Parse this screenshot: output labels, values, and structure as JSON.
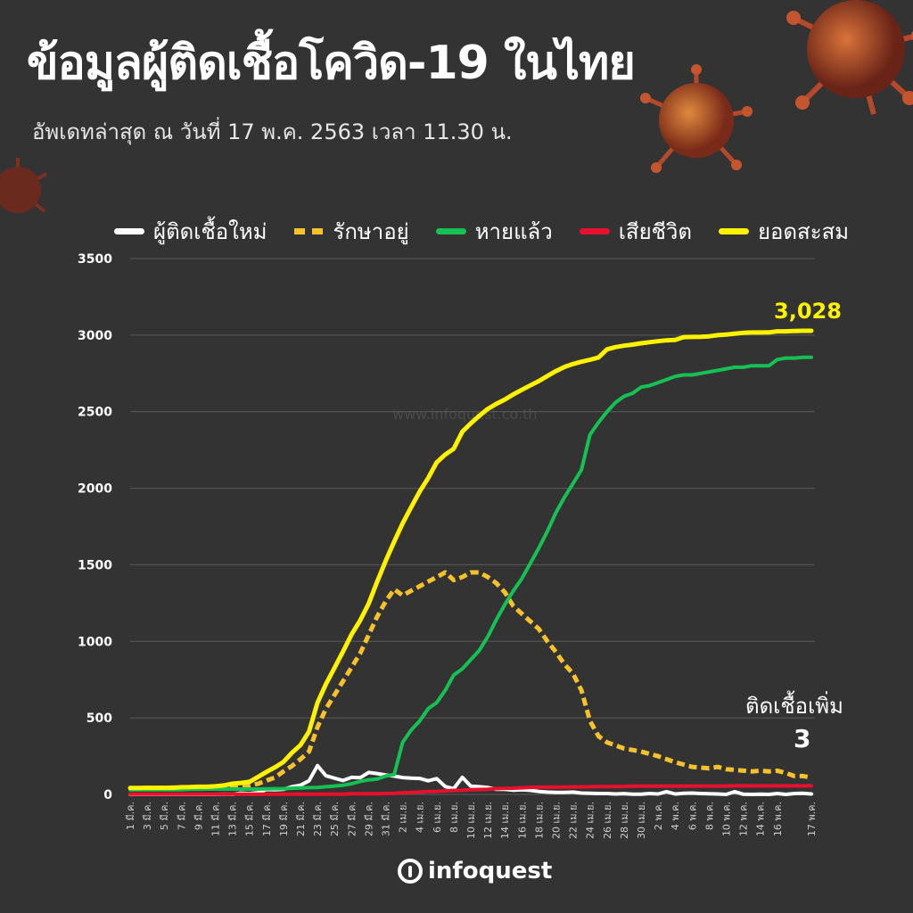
{
  "title": "ข้อมูลผู้ติดเชื้อโควิด-19 ในไทย",
  "subtitle": "อัพเดทล่าสุด ณ วันที่  17 พ.ค. 2563 เวลา 11.30 น.",
  "watermark": "www.infoquest.co.th",
  "logo_text": "infoquest",
  "colors": {
    "background": "#333333",
    "new_cases": "#ffffff",
    "hospitalized": "#f5c22b",
    "recovered": "#16c153",
    "deaths": "#e8112d",
    "cumulative": "#fff200"
  },
  "annotations": {
    "total_label": "3,028",
    "new_label": "ติดเชื้อเพิ่ม",
    "new_value": "3"
  },
  "chart_data": {
    "type": "line",
    "title": "ข้อมูลผู้ติดเชื้อโควิด-19 ในไทย",
    "ylim": [
      0,
      3500
    ],
    "yticks": [
      0,
      500,
      1000,
      1500,
      2000,
      2500,
      3000,
      3500
    ],
    "grid": true,
    "legend_position": "top",
    "x_tick_labels": [
      "1 มี.ค.",
      "3 มี.ค.",
      "5 มี.ค.",
      "7 มี.ค.",
      "9 มี.ค.",
      "11 มี.ค.",
      "13 มี.ค.",
      "15 มี.ค.",
      "17 มี.ค.",
      "19 มี.ค.",
      "21 มี.ค.",
      "23 มี.ค.",
      "25 มี.ค.",
      "27 มี.ค.",
      "29 มี.ค.",
      "31 มี.ค.",
      "2 เม.ย.",
      "4 เม.ย.",
      "6 เม.ย.",
      "8 เม.ย.",
      "10 เม.ย.",
      "12 เม.ย.",
      "14 เม.ย.",
      "16 เม.ย.",
      "18 เม.ย.",
      "20 เม.ย.",
      "22 เม.ย.",
      "24 เม.ย.",
      "26 เม.ย.",
      "28 เม.ย.",
      "30 เม.ย.",
      "2 พ.ค.",
      "4 พ.ค.",
      "6 พ.ค.",
      "8 พ.ค.",
      "10 พ.ค.",
      "12 พ.ค.",
      "14 พ.ค.",
      "16 พ.ค.",
      "17 พ.ค."
    ],
    "series": [
      {
        "name": "ผู้ติดเชื้อใหม่",
        "key": "new_cases",
        "style": "solid",
        "values": [
          0,
          0,
          0,
          0,
          0,
          0,
          0,
          0,
          0,
          0,
          0,
          2,
          0,
          8,
          5,
          11,
          32,
          30,
          33,
          50,
          60,
          89,
          188,
          122,
          106,
          91,
          111,
          109,
          143,
          136,
          127,
          120,
          110,
          106,
          104,
          89,
          103,
          51,
          38,
          111,
          54,
          50,
          45,
          33,
          34,
          28,
          30,
          27,
          19,
          15,
          13,
          13,
          15,
          9,
          7,
          6,
          6,
          3,
          5,
          1,
          2,
          6,
          3,
          18,
          3,
          7,
          9,
          6,
          4,
          3,
          0,
          18,
          1,
          0,
          1,
          0,
          6,
          0,
          6,
          7,
          3
        ]
      },
      {
        "name": "รักษาอยู่",
        "key": "hospitalized",
        "style": "dashed",
        "values": [
          40,
          41,
          42,
          42,
          43,
          44,
          44,
          44,
          45,
          45,
          46,
          47,
          48,
          52,
          58,
          70,
          90,
          110,
          150,
          185,
          230,
          280,
          440,
          560,
          650,
          740,
          830,
          920,
          1040,
          1160,
          1260,
          1340,
          1300,
          1330,
          1360,
          1390,
          1420,
          1450,
          1400,
          1420,
          1450,
          1450,
          1420,
          1380,
          1320,
          1230,
          1180,
          1130,
          1080,
          1000,
          930,
          850,
          790,
          680,
          480,
          380,
          340,
          320,
          300,
          290,
          280,
          265,
          250,
          230,
          210,
          195,
          180,
          175,
          170,
          180,
          165,
          160,
          155,
          150,
          155,
          150,
          155,
          140,
          120,
          120,
          110
        ]
      },
      {
        "name": "หายแล้ว",
        "key": "recovered",
        "style": "solid",
        "values": [
          30,
          30,
          30,
          31,
          31,
          31,
          31,
          33,
          33,
          35,
          35,
          35,
          35,
          35,
          35,
          35,
          36,
          37,
          38,
          40,
          42,
          44,
          45,
          50,
          55,
          60,
          70,
          85,
          95,
          100,
          120,
          130,
          340,
          420,
          480,
          560,
          600,
          680,
          780,
          820,
          880,
          940,
          1030,
          1140,
          1240,
          1330,
          1410,
          1510,
          1610,
          1720,
          1840,
          1940,
          2030,
          2120,
          2350,
          2430,
          2500,
          2560,
          2600,
          2620,
          2660,
          2670,
          2690,
          2710,
          2730,
          2740,
          2740,
          2750,
          2760,
          2770,
          2780,
          2790,
          2790,
          2800,
          2800,
          2800,
          2840,
          2850,
          2850,
          2855,
          2855
        ]
      },
      {
        "name": "เสียชีวิต",
        "key": "deaths",
        "style": "solid",
        "values": [
          1,
          1,
          1,
          1,
          1,
          1,
          1,
          1,
          1,
          1,
          1,
          1,
          1,
          1,
          1,
          1,
          1,
          1,
          1,
          1,
          1,
          1,
          1,
          1,
          1,
          2,
          4,
          4,
          4,
          4,
          6,
          7,
          10,
          12,
          15,
          19,
          20,
          23,
          26,
          27,
          30,
          32,
          33,
          38,
          40,
          41,
          43,
          46,
          47,
          47,
          47,
          48,
          49,
          49,
          50,
          51,
          51,
          52,
          52,
          54,
          54,
          54,
          54,
          54,
          54,
          54,
          55,
          55,
          55,
          55,
          55,
          56,
          56,
          56,
          56,
          56,
          56,
          56,
          56,
          56,
          56
        ]
      },
      {
        "name": "ยอดสะสม",
        "key": "cumulative",
        "style": "solid",
        "values": [
          42,
          42,
          43,
          43,
          43,
          43,
          47,
          48,
          50,
          50,
          53,
          59,
          70,
          75,
          82,
          114,
          147,
          177,
          212,
          272,
          322,
          411,
          599,
          721,
          827,
          934,
          1045,
          1136,
          1245,
          1388,
          1524,
          1651,
          1771,
          1875,
          1978,
          2067,
          2169,
          2220,
          2258,
          2369,
          2423,
          2473,
          2518,
          2551,
          2579,
          2613,
          2643,
          2672,
          2700,
          2733,
          2765,
          2792,
          2811,
          2826,
          2839,
          2854,
          2907,
          2922,
          2931,
          2938,
          2947,
          2954,
          2960,
          2966,
          2969,
          2987,
          2988,
          2989,
          2992,
          3000,
          3004,
          3009,
          3015,
          3017,
          3017,
          3018,
          3025,
          3025,
          3027,
          3028,
          3028
        ]
      }
    ]
  }
}
